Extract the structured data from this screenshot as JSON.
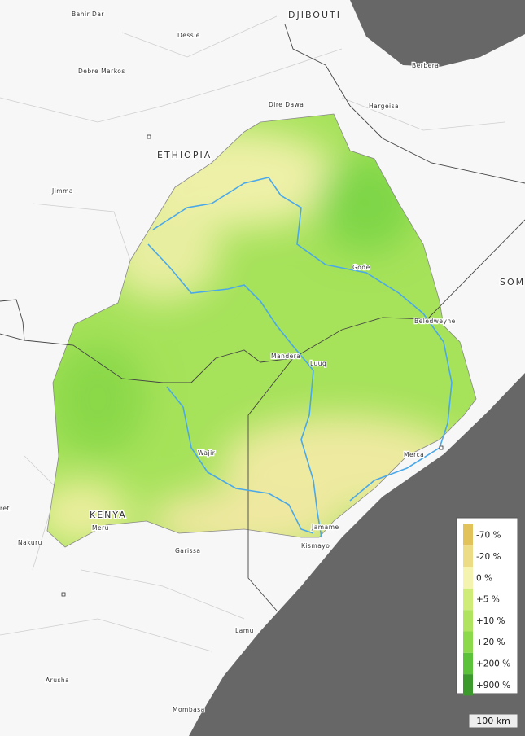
{
  "places": {
    "bahir_dar": "Bahir Dar",
    "dessie": "Dessie",
    "debre_markos": "Debre Markos",
    "dire_dawa": "Dire Dawa",
    "hargeisa": "Hargeisa",
    "berbera": "Berbera",
    "jimma": "Jimma",
    "gode": "Gode",
    "beledweyne": "Beledweyne",
    "mandera": "Mandera",
    "luuq": "Luuq",
    "wajir": "Wajir",
    "merca": "Merca",
    "meru": "Meru",
    "nakuru": "Nakuru",
    "garissa": "Garissa",
    "jamame": "Jamame",
    "kismayo": "Kismayo",
    "lamu": "Lamu",
    "arusha": "Arusha",
    "mombasa": "Mombasa",
    "ret": "ret"
  },
  "countries": {
    "djibouti": "DJIBOUTI",
    "ethiopia": "ETHIOPIA",
    "somalia": "SOM",
    "kenya": "KENYA"
  },
  "legend": {
    "items": [
      {
        "label": "-70 %",
        "color": "#e2c25a"
      },
      {
        "label": "-20 %",
        "color": "#ecdc86"
      },
      {
        "label": "0 %",
        "color": "#f4f4b0"
      },
      {
        "label": "+5 %",
        "color": "#cfec78"
      },
      {
        "label": "+10 %",
        "color": "#b0e460"
      },
      {
        "label": "+20 %",
        "color": "#8cda4c"
      },
      {
        "label": "+200 %",
        "color": "#5cc23a"
      },
      {
        "label": "+900 %",
        "color": "#3c9a2c"
      }
    ]
  },
  "scale_bar": "100 km"
}
